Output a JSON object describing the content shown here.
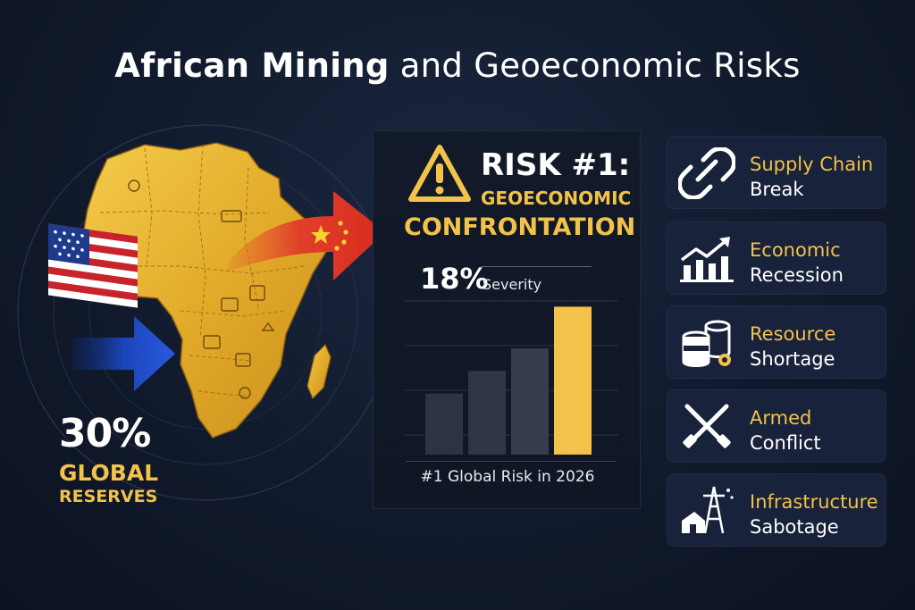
{
  "header": {
    "title_bold": "African Mining",
    "title_rest": "and Geoeconomic Risks"
  },
  "map": {
    "stat_value": "30%",
    "stat_label_line1": "GLOBAL",
    "stat_label_line2": "RESERVES",
    "colors": {
      "continent": "#e9b733",
      "arrow_blue": "#1f4fc9",
      "arrow_red": "#e23a23",
      "accent": "#f2c24a"
    }
  },
  "risk_panel": {
    "title": "RISK #1:",
    "subtitle_line1": "GEOECONOMIC",
    "subtitle_line2": "CONFRONTATION",
    "severity_value": "18%",
    "severity_label": "Severity",
    "footer": "#1 Global Risk in 2026",
    "bars": [
      {
        "level": 0.38,
        "color": "#2b3344"
      },
      {
        "level": 0.52,
        "color": "#2e3648"
      },
      {
        "level": 0.66,
        "color": "#343c4e"
      },
      {
        "level": 0.92,
        "color": "#f2c24a"
      }
    ]
  },
  "risks": [
    {
      "line1": "Supply Chain",
      "line2": "Break",
      "icon": "broken-chain-icon"
    },
    {
      "line1": "Economic",
      "line2": "Recession",
      "icon": "trend-chart-icon"
    },
    {
      "line1": "Resource",
      "line2": "Shortage",
      "icon": "barrels-icon"
    },
    {
      "line1": "Armed",
      "line2": "Conflict",
      "icon": "crossed-rifles-icon"
    },
    {
      "line1": "Infrastructure",
      "line2": "Sabotage",
      "icon": "power-tower-icon"
    }
  ]
}
